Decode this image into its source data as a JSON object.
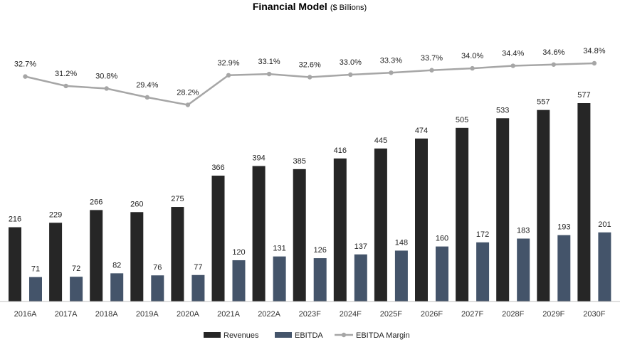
{
  "chart_data": {
    "type": "bar",
    "title": "Financial Model",
    "subtitle": "($ Billions)",
    "categories": [
      "2016A",
      "2017A",
      "2018A",
      "2019A",
      "2020A",
      "2021A",
      "2022A",
      "2023F",
      "2024F",
      "2025F",
      "2026F",
      "2027F",
      "2028F",
      "2029F",
      "2030F"
    ],
    "series": [
      {
        "name": "Revenues",
        "kind": "bar",
        "color": "#262626",
        "values": [
          216,
          229,
          266,
          260,
          275,
          366,
          394,
          385,
          416,
          445,
          474,
          505,
          533,
          557,
          577
        ]
      },
      {
        "name": "EBITDA",
        "kind": "bar",
        "color": "#44546a",
        "values": [
          71,
          72,
          82,
          76,
          77,
          120,
          131,
          126,
          137,
          148,
          160,
          172,
          183,
          193,
          201
        ]
      },
      {
        "name": "EBITDA Margin",
        "kind": "line",
        "color": "#a6a6a6",
        "values": [
          32.7,
          31.2,
          30.8,
          29.4,
          28.2,
          32.9,
          33.1,
          32.6,
          33.0,
          33.3,
          33.7,
          34.0,
          34.4,
          34.6,
          34.8
        ],
        "labels": [
          "32.7%",
          "31.2%",
          "30.8%",
          "29.4%",
          "28.2%",
          "32.9%",
          "33.1%",
          "32.6%",
          "33.0%",
          "33.3%",
          "33.7%",
          "34.0%",
          "34.4%",
          "34.6%",
          "34.8%"
        ]
      }
    ],
    "ylim": [
      0,
      600
    ],
    "margin_ylim": [
      20,
      36
    ],
    "xlabel": "",
    "ylabel": "",
    "grid": false,
    "legend": "bottom-center"
  }
}
